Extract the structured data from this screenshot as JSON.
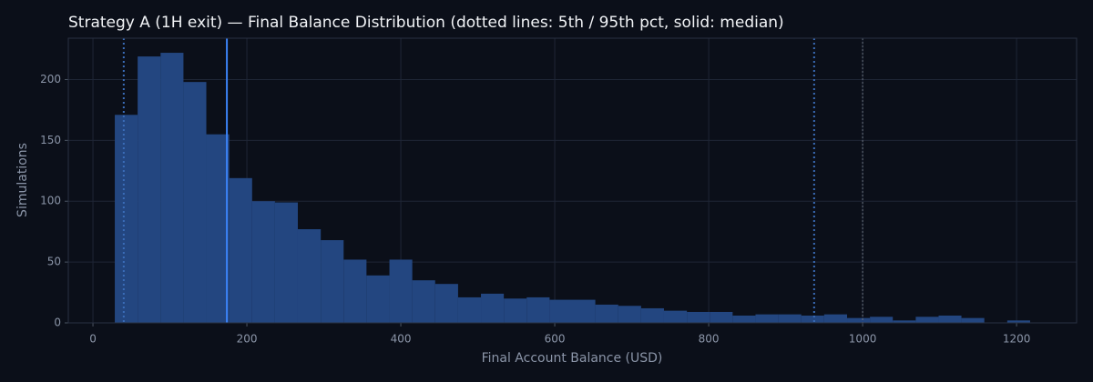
{
  "chart_data": {
    "type": "histogram",
    "title": "Strategy A (1H exit) — Final Balance Distribution (dotted lines: 5th / 95th pct, solid: median)",
    "x_label": "Final Account Balance (USD)",
    "y_label": "Simulations",
    "bins": [
      28.4,
      58.1,
      87.9,
      117.6,
      147.3,
      177.1,
      206.8,
      236.5,
      266.2,
      296.0,
      325.7,
      355.4,
      385.2,
      414.9,
      444.6,
      474.4,
      504.1,
      533.8,
      563.5,
      593.3,
      623.0,
      652.7,
      682.5,
      712.2,
      741.9,
      771.7,
      801.4,
      831.1,
      860.8,
      890.6,
      920.3,
      950.0,
      979.8,
      1009.5,
      1039.2,
      1069.0,
      1098.7,
      1128.4,
      1158.1,
      1187.9,
      1217.6
    ],
    "values": [
      171,
      219,
      222,
      198,
      155,
      119,
      100,
      99,
      77,
      68,
      52,
      39,
      52,
      35,
      32,
      21,
      24,
      20,
      21,
      19,
      19,
      15,
      14,
      12,
      10,
      9,
      9,
      6,
      7,
      7,
      6,
      7,
      4,
      5,
      2,
      5,
      6,
      4,
      0,
      2
    ],
    "color": "#234680",
    "percentile_5": 40,
    "median": 174,
    "percentile_95": 937,
    "reference_line": 1000,
    "median_color": "#3b82f6",
    "percentile_color": "#3a6cb8",
    "reference_color": "#6b7280",
    "xlim": [
      -32,
      1278
    ],
    "ylim": [
      0,
      234
    ],
    "xticks": [
      0,
      200,
      400,
      600,
      800,
      1000,
      1200
    ],
    "yticks": [
      0,
      50,
      100,
      150,
      200
    ],
    "grid": true
  }
}
